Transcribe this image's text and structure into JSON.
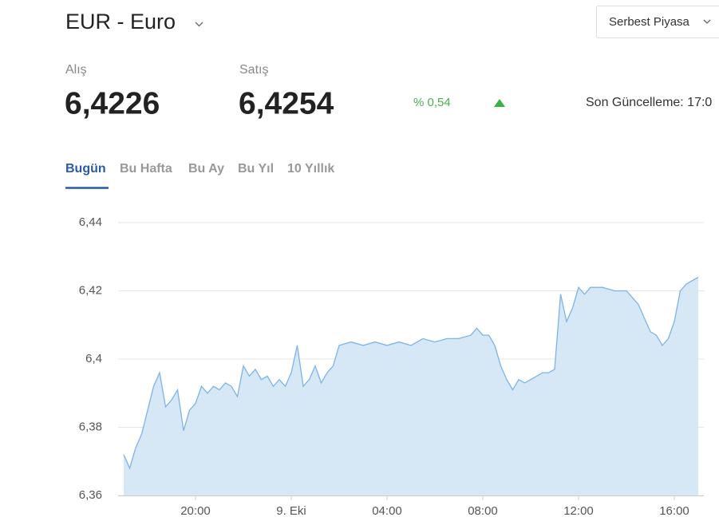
{
  "header": {
    "title": "EUR - Euro",
    "market_select": "Serbest Piyasa"
  },
  "quote": {
    "buy_label": "Alış",
    "buy": "6,4226",
    "sell_label": "Satış",
    "sell": "6,4254",
    "change": "% 0,54",
    "updated": "Son Güncelleme: 17:0"
  },
  "tabs": [
    "Bugün",
    "Bu Hafta",
    "Bu Ay",
    "Bu Yıl",
    "10 Yıllık"
  ],
  "chart_data": {
    "type": "area",
    "color": "#7db3e8",
    "fill": "#d6e7f6",
    "grid": true,
    "x": [
      "17:00",
      "17:15",
      "17:30",
      "17:45",
      "18:00",
      "18:15",
      "18:30",
      "18:45",
      "19:00",
      "19:15",
      "19:30",
      "19:45",
      "20:00",
      "20:15",
      "20:30",
      "20:45",
      "21:00",
      "21:15",
      "21:30",
      "21:45",
      "22:00",
      "22:15",
      "22:30",
      "22:45",
      "23:00",
      "23:15",
      "23:30",
      "23:45",
      "00:00",
      "00:15",
      "00:30",
      "00:45",
      "01:00",
      "01:15",
      "01:30",
      "01:45",
      "02:00",
      "02:30",
      "03:00",
      "03:30",
      "04:00",
      "04:30",
      "05:00",
      "05:30",
      "06:00",
      "06:30",
      "07:00",
      "07:30",
      "07:45",
      "08:00",
      "08:15",
      "08:30",
      "08:45",
      "09:00",
      "09:15",
      "09:30",
      "09:45",
      "10:00",
      "10:15",
      "10:30",
      "10:45",
      "11:00",
      "11:15",
      "11:30",
      "11:45",
      "12:00",
      "12:15",
      "12:30",
      "13:00",
      "13:30",
      "14:00",
      "14:15",
      "14:30",
      "14:45",
      "15:00",
      "15:15",
      "15:30",
      "15:45",
      "16:00",
      "16:15",
      "16:30",
      "16:45",
      "17:00"
    ],
    "values": [
      6.372,
      6.368,
      6.374,
      6.378,
      6.385,
      6.392,
      6.396,
      6.386,
      6.388,
      6.391,
      6.379,
      6.385,
      6.387,
      6.392,
      6.39,
      6.392,
      6.391,
      6.393,
      6.392,
      6.389,
      6.398,
      6.395,
      6.397,
      6.394,
      6.395,
      6.392,
      6.394,
      6.392,
      6.396,
      6.404,
      6.392,
      6.394,
      6.398,
      6.393,
      6.396,
      6.398,
      6.404,
      6.405,
      6.404,
      6.405,
      6.404,
      6.405,
      6.404,
      6.406,
      6.405,
      6.406,
      6.406,
      6.407,
      6.409,
      6.407,
      6.407,
      6.404,
      6.398,
      6.394,
      6.391,
      6.394,
      6.393,
      6.394,
      6.395,
      6.396,
      6.396,
      6.397,
      6.419,
      6.411,
      6.415,
      6.421,
      6.419,
      6.421,
      6.421,
      6.42,
      6.42,
      6.418,
      6.416,
      6.412,
      6.408,
      6.407,
      6.404,
      6.406,
      6.411,
      6.42,
      6.422,
      6.423,
      6.424
    ],
    "xlim": [
      "17:00",
      "17:04"
    ],
    "xticks": [
      {
        "value": "20:00",
        "label": "20:00"
      },
      {
        "value": "00:00",
        "label": "9. Eki"
      },
      {
        "value": "04:00",
        "label": "04:00"
      },
      {
        "value": "08:00",
        "label": "08:00"
      },
      {
        "value": "12:00",
        "label": "12:00"
      },
      {
        "value": "16:00",
        "label": "16:00"
      }
    ],
    "ylim": [
      6.36,
      6.44
    ],
    "yticks": [
      {
        "value": 6.36,
        "label": "6,36"
      },
      {
        "value": 6.38,
        "label": "6,38"
      },
      {
        "value": 6.4,
        "label": "6,4"
      },
      {
        "value": 6.42,
        "label": "6,42"
      },
      {
        "value": 6.44,
        "label": "6,44"
      }
    ]
  }
}
